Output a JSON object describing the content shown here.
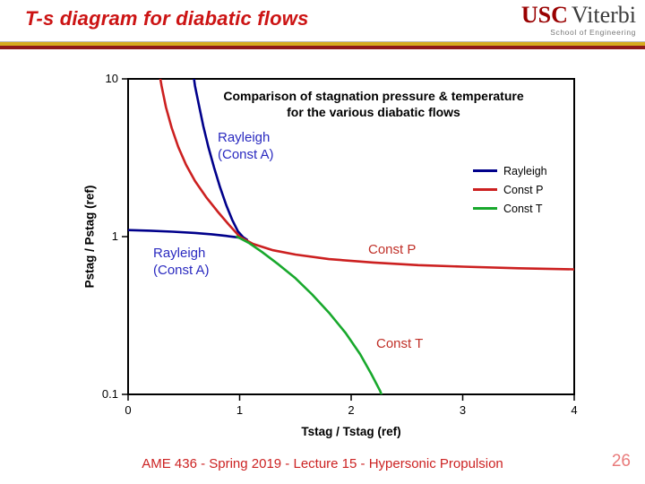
{
  "slide": {
    "title": "T-s diagram for diabatic flows",
    "footer": "AME 436 - Spring 2019 - Lecture 15 - Hypersonic Propulsion",
    "page_number": "26"
  },
  "logo": {
    "usc": "USC",
    "viterbi": "Viterbi",
    "school": "School of Engineering"
  },
  "chart_data": {
    "type": "line",
    "title_line1": "Comparison of stagnation pressure & temperature",
    "title_line2": "for the various diabatic flows",
    "xlabel": "Tstag / Tstag (ref)",
    "ylabel": "Pstag / Pstag (ref)",
    "x_scale": "linear",
    "y_scale": "log",
    "xlim": [
      0,
      4
    ],
    "ylim": [
      0.1,
      10
    ],
    "x_ticks": [
      0,
      1,
      2,
      3,
      4
    ],
    "y_ticks": [
      10,
      1,
      0.1
    ],
    "grid": false,
    "legend_position": "inside-right",
    "legend": [
      {
        "id": "rayleigh",
        "label": "Rayleigh",
        "color": "#00008b"
      },
      {
        "id": "const-p",
        "label": "Const P",
        "color": "#cc2020"
      },
      {
        "id": "const-t",
        "label": "Const T",
        "color": "#18a82c"
      }
    ],
    "series": [
      {
        "id": "rayleigh-supersonic-branch",
        "name": "Rayleigh (Const A) - upper branch",
        "color": "#00008b",
        "points": [
          [
            0.575,
            12
          ],
          [
            0.6,
            9
          ],
          [
            0.635,
            6.8
          ],
          [
            0.675,
            5.0
          ],
          [
            0.72,
            3.7
          ],
          [
            0.77,
            2.75
          ],
          [
            0.825,
            2.05
          ],
          [
            0.88,
            1.58
          ],
          [
            0.935,
            1.27
          ],
          [
            0.985,
            1.08
          ],
          [
            1.03,
            0.995
          ],
          [
            1.065,
            0.955
          ]
        ]
      },
      {
        "id": "rayleigh-subsonic-branch",
        "name": "Rayleigh (Const A) - lower branch",
        "color": "#00008b",
        "points": [
          [
            0,
            1.1
          ],
          [
            0.2,
            1.09
          ],
          [
            0.4,
            1.075
          ],
          [
            0.6,
            1.055
          ],
          [
            0.75,
            1.035
          ],
          [
            0.88,
            1.01
          ],
          [
            0.98,
            0.99
          ],
          [
            1.065,
            0.955
          ]
        ]
      },
      {
        "id": "const-p",
        "name": "Const P",
        "color": "#cc2020",
        "points": [
          [
            0.27,
            12
          ],
          [
            0.3,
            9
          ],
          [
            0.34,
            6.6
          ],
          [
            0.39,
            4.9
          ],
          [
            0.45,
            3.7
          ],
          [
            0.52,
            2.85
          ],
          [
            0.6,
            2.25
          ],
          [
            0.7,
            1.78
          ],
          [
            0.8,
            1.45
          ],
          [
            0.9,
            1.2
          ],
          [
            1.0,
            1.0
          ],
          [
            1.12,
            0.9
          ],
          [
            1.3,
            0.82
          ],
          [
            1.5,
            0.77
          ],
          [
            1.8,
            0.72
          ],
          [
            2.2,
            0.685
          ],
          [
            2.6,
            0.66
          ],
          [
            3.0,
            0.645
          ],
          [
            3.5,
            0.63
          ],
          [
            4.0,
            0.62
          ]
        ]
      },
      {
        "id": "const-t",
        "name": "Const T",
        "color": "#18a82c",
        "points": [
          [
            0.975,
            1.0
          ],
          [
            1.08,
            0.915
          ],
          [
            1.2,
            0.8
          ],
          [
            1.35,
            0.665
          ],
          [
            1.5,
            0.545
          ],
          [
            1.65,
            0.43
          ],
          [
            1.8,
            0.33
          ],
          [
            1.95,
            0.245
          ],
          [
            2.08,
            0.18
          ],
          [
            2.18,
            0.135
          ],
          [
            2.26,
            0.105
          ],
          [
            2.3,
            0.088
          ]
        ]
      }
    ],
    "annotations": {
      "rayleigh_upper": {
        "line1": "Rayleigh",
        "line2": "(Const A)",
        "color": "#2a2ac0"
      },
      "rayleigh_lower": {
        "line1": "Rayleigh",
        "line2": "(Const A)",
        "color": "#2a2ac0"
      },
      "const_p": {
        "text": "Const P",
        "color": "#c03028"
      },
      "const_t": {
        "text": "Const T",
        "color": "#c03028"
      }
    }
  }
}
